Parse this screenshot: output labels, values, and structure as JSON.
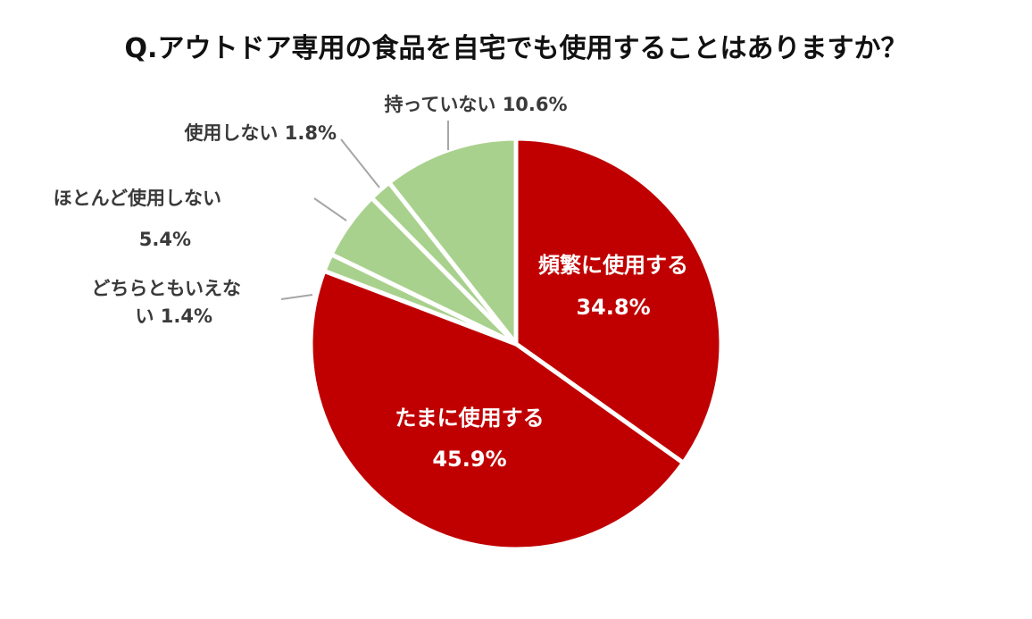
{
  "chart_data": {
    "type": "pie",
    "title": "Q.アウトドア専用の食品を自宅でも使用することはありますか？",
    "slices": [
      {
        "label": "頻繁に使用する",
        "value": 34.8,
        "value_label": "34.8%",
        "color": "#c00000"
      },
      {
        "label": "たまに使用する",
        "value": 45.9,
        "value_label": "45.9%",
        "color": "#c00000"
      },
      {
        "label": "どちらともいえない",
        "label_lines": [
          "どちらともいえな",
          "い 1.4%"
        ],
        "value": 1.4,
        "value_label": "1.4%",
        "color": "#a9d18e"
      },
      {
        "label": "ほとんど使用しない",
        "label_lines": [
          "ほとんど使用しない",
          "5.4%"
        ],
        "value": 5.4,
        "value_label": "5.4%",
        "color": "#a9d18e"
      },
      {
        "label": "使用しない",
        "label_lines": [
          "使用しない 1.8%"
        ],
        "value": 1.8,
        "value_label": "1.8%",
        "color": "#a9d18e"
      },
      {
        "label": "持っていない",
        "label_lines": [
          "持っていない 10.6%"
        ],
        "value": 10.6,
        "value_label": "10.6%",
        "color": "#a9d18e"
      }
    ]
  }
}
